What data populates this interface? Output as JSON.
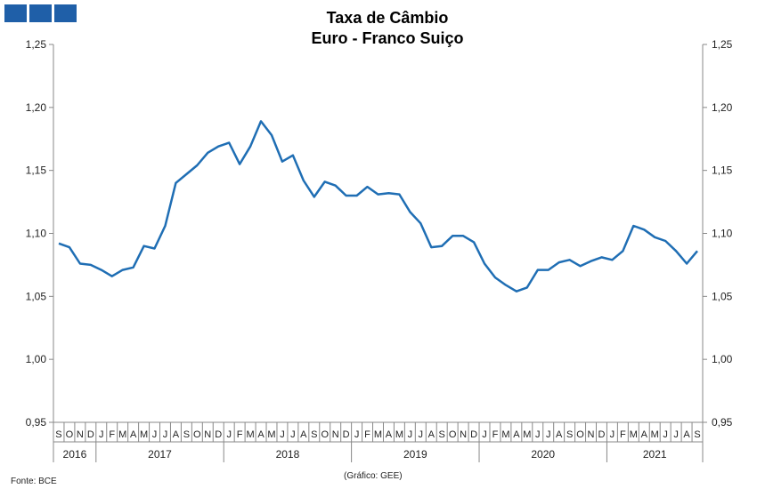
{
  "title_line1": "Taxa de Câmbio",
  "title_line2": "Euro - Franco Suiço",
  "source": "Fonte: BCE",
  "credit": "(Gráfico: GEE)",
  "colors": {
    "line": "#1f6eb4",
    "logo": "#1f5fa8",
    "axis": "#888888"
  },
  "chart_data": {
    "type": "line",
    "title": "Taxa de Câmbio Euro - Franco Suiço",
    "ylim": [
      0.95,
      1.25
    ],
    "yticks": [
      "0,95",
      "1,00",
      "1,05",
      "1,10",
      "1,15",
      "1,20",
      "1,25"
    ],
    "month_labels": [
      "S",
      "O",
      "N",
      "D",
      "J",
      "F",
      "M",
      "A",
      "M",
      "J",
      "J",
      "A",
      "S",
      "O",
      "N",
      "D",
      "J",
      "F",
      "M",
      "A",
      "M",
      "J",
      "J",
      "A",
      "S",
      "O",
      "N",
      "D",
      "J",
      "F",
      "M",
      "A",
      "M",
      "J",
      "J",
      "A",
      "S",
      "O",
      "N",
      "D",
      "J",
      "F",
      "M",
      "A",
      "M",
      "J",
      "J",
      "A",
      "S",
      "O",
      "N",
      "D",
      "J",
      "F",
      "M",
      "A",
      "M",
      "J",
      "J",
      "A",
      "S"
    ],
    "years": [
      {
        "label": "2016",
        "months": 4
      },
      {
        "label": "2017",
        "months": 12
      },
      {
        "label": "2018",
        "months": 12
      },
      {
        "label": "2019",
        "months": 12
      },
      {
        "label": "2020",
        "months": 12
      },
      {
        "label": "2021",
        "months": 9
      }
    ],
    "values": [
      1.092,
      1.089,
      1.076,
      1.075,
      1.071,
      1.066,
      1.071,
      1.073,
      1.09,
      1.088,
      1.106,
      1.14,
      1.147,
      1.154,
      1.164,
      1.169,
      1.172,
      1.155,
      1.169,
      1.189,
      1.178,
      1.157,
      1.162,
      1.142,
      1.129,
      1.141,
      1.138,
      1.13,
      1.13,
      1.137,
      1.131,
      1.132,
      1.131,
      1.117,
      1.108,
      1.089,
      1.09,
      1.098,
      1.098,
      1.093,
      1.076,
      1.065,
      1.059,
      1.054,
      1.057,
      1.071,
      1.071,
      1.077,
      1.079,
      1.074,
      1.078,
      1.081,
      1.079,
      1.086,
      1.106,
      1.103,
      1.097,
      1.094,
      1.086,
      1.076,
      1.086
    ]
  }
}
